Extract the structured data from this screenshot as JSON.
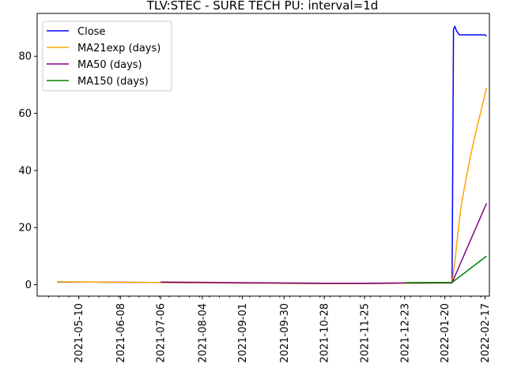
{
  "chart_data": {
    "type": "line",
    "title": "TLV:STEC - SURE TECH PU: interval=1d",
    "xlabel": "",
    "ylabel": "",
    "x_range": [
      "2021-04-11",
      "2022-02-20"
    ],
    "ylim": [
      -4,
      95
    ],
    "grid": false,
    "legend_position": "top-left",
    "x_ticks": [
      "2021-05-10",
      "2021-06-08",
      "2021-07-06",
      "2021-08-04",
      "2021-09-01",
      "2021-09-30",
      "2021-10-28",
      "2021-11-25",
      "2021-12-23",
      "2022-01-20",
      "2022-02-17"
    ],
    "y_ticks": [
      "0",
      "20",
      "40",
      "60",
      "80"
    ],
    "series": [
      {
        "name": "Close",
        "color": "#0000ff",
        "points": [
          [
            "2021-04-25",
            0.9
          ],
          [
            "2021-05-20",
            0.9
          ],
          [
            "2021-06-20",
            0.8
          ],
          [
            "2021-07-20",
            0.7
          ],
          [
            "2021-08-20",
            0.6
          ],
          [
            "2021-09-20",
            0.5
          ],
          [
            "2021-10-20",
            0.4
          ],
          [
            "2021-11-20",
            0.4
          ],
          [
            "2021-12-20",
            0.5
          ],
          [
            "2022-01-15",
            0.6
          ],
          [
            "2022-01-25",
            0.6
          ],
          [
            "2022-01-26",
            89.5
          ],
          [
            "2022-01-27",
            90.5
          ],
          [
            "2022-01-28",
            89
          ],
          [
            "2022-01-30",
            87.5
          ],
          [
            "2022-02-01",
            87.5
          ],
          [
            "2022-02-16",
            87.5
          ],
          [
            "2022-02-17",
            87.5
          ],
          [
            "2022-02-18",
            87
          ]
        ]
      },
      {
        "name": "MA21exp (days)",
        "color": "#ffa500",
        "points": [
          [
            "2021-04-25",
            1.0
          ],
          [
            "2021-05-20",
            0.9
          ],
          [
            "2021-06-20",
            0.8
          ],
          [
            "2021-07-20",
            0.7
          ],
          [
            "2021-08-20",
            0.6
          ],
          [
            "2021-09-20",
            0.5
          ],
          [
            "2021-10-20",
            0.4
          ],
          [
            "2021-11-20",
            0.4
          ],
          [
            "2021-12-20",
            0.5
          ],
          [
            "2022-01-25",
            0.6
          ],
          [
            "2022-01-27",
            8
          ],
          [
            "2022-01-29",
            18
          ],
          [
            "2022-01-31",
            26.5
          ],
          [
            "2022-02-03",
            35
          ],
          [
            "2022-02-06",
            43
          ],
          [
            "2022-02-09",
            50
          ],
          [
            "2022-02-12",
            56.5
          ],
          [
            "2022-02-15",
            62.5
          ],
          [
            "2022-02-18",
            69
          ]
        ]
      },
      {
        "name": "MA50 (days)",
        "color": "#800080",
        "points": [
          [
            "2021-07-06",
            0.9
          ],
          [
            "2021-08-04",
            0.8
          ],
          [
            "2021-09-01",
            0.7
          ],
          [
            "2021-09-30",
            0.6
          ],
          [
            "2021-10-28",
            0.5
          ],
          [
            "2021-11-25",
            0.5
          ],
          [
            "2021-12-23",
            0.6
          ],
          [
            "2022-01-25",
            0.7
          ],
          [
            "2022-02-18",
            28.5
          ]
        ]
      },
      {
        "name": "MA150 (days)",
        "color": "#008000",
        "points": [
          [
            "2021-12-23",
            0.7
          ],
          [
            "2022-01-25",
            0.8
          ],
          [
            "2022-02-18",
            10
          ]
        ]
      }
    ]
  }
}
